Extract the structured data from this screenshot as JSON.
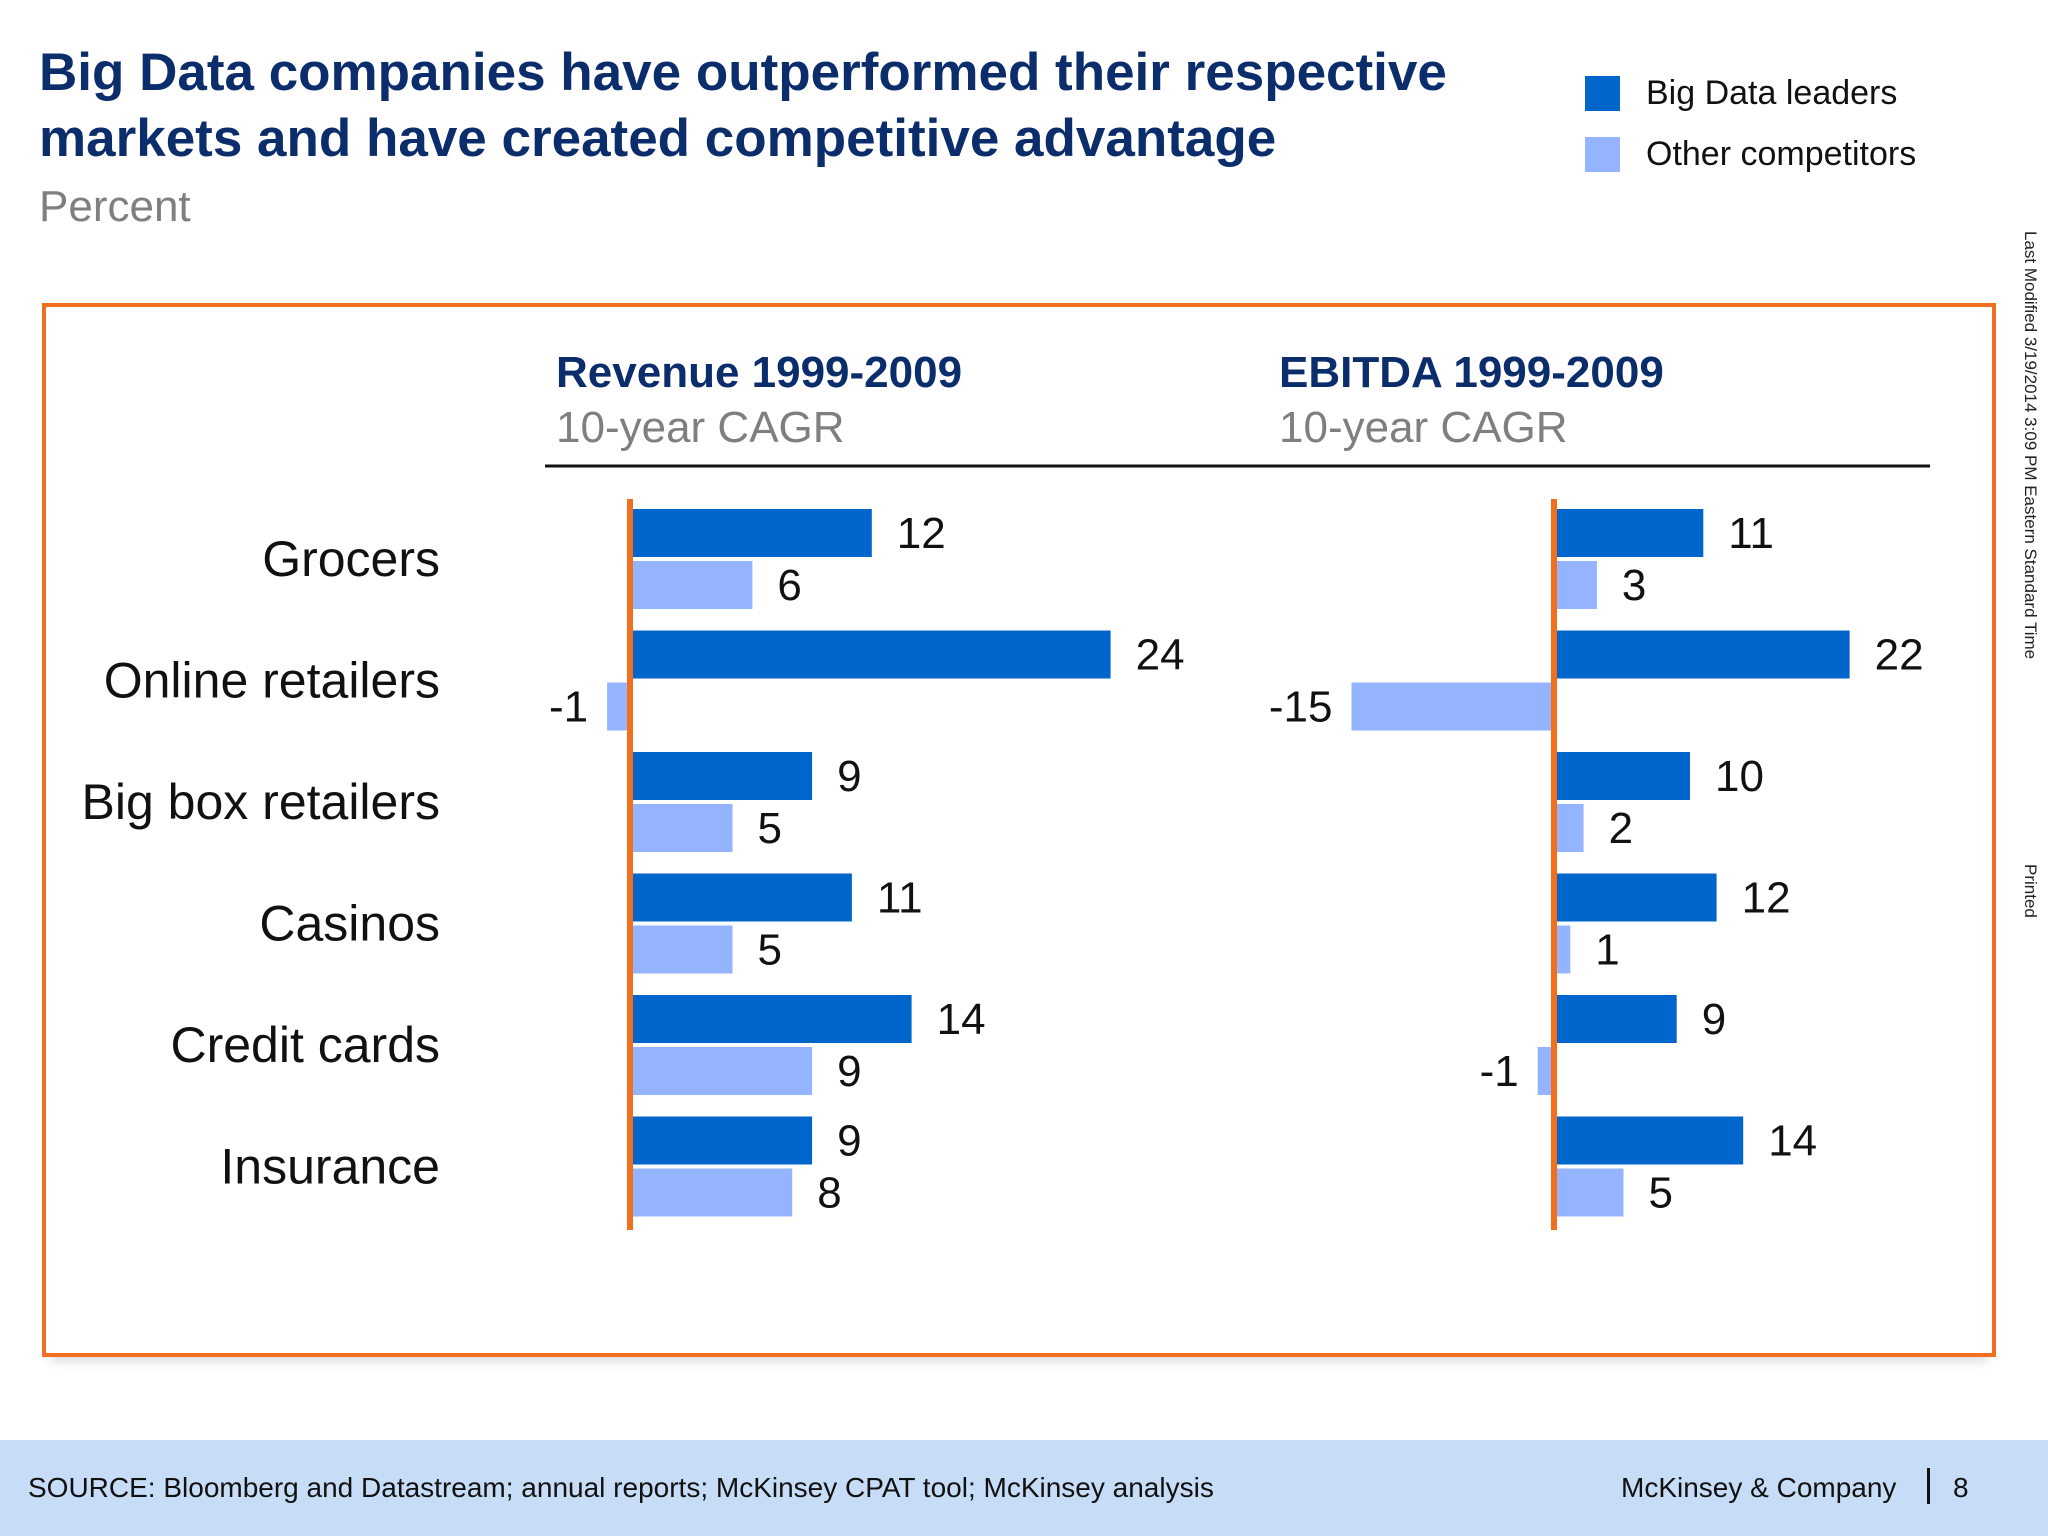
{
  "header": {
    "title": "Big Data companies have outperformed their respective markets and have created competitive advantage",
    "subtitle": "Percent"
  },
  "legend": [
    {
      "label": "Big Data leaders",
      "color": "#0066CC"
    },
    {
      "label": "Other competitors",
      "color": "#94B4FF"
    }
  ],
  "colors": {
    "frame": "#F07020",
    "axis": "#F07020",
    "title": "#0B2D6B"
  },
  "chart_data": [
    {
      "type": "bar",
      "orientation": "horizontal",
      "title": "Revenue 1999-2009",
      "subtitle": "10-year CAGR",
      "categories": [
        "Grocers",
        "Online retailers",
        "Big box retailers",
        "Casinos",
        "Credit cards",
        "Insurance"
      ],
      "series": [
        {
          "name": "Big Data leaders",
          "values": [
            12,
            24,
            9,
            11,
            14,
            9
          ]
        },
        {
          "name": "Other competitors",
          "values": [
            6,
            -1,
            5,
            5,
            9,
            8
          ]
        }
      ],
      "grid": false,
      "legend": "top-right"
    },
    {
      "type": "bar",
      "orientation": "horizontal",
      "title": "EBITDA 1999-2009",
      "subtitle": "10-year CAGR",
      "categories": [
        "Grocers",
        "Online retailers",
        "Big box retailers",
        "Casinos",
        "Credit cards",
        "Insurance"
      ],
      "series": [
        {
          "name": "Big Data leaders",
          "values": [
            11,
            22,
            10,
            12,
            9,
            14
          ]
        },
        {
          "name": "Other competitors",
          "values": [
            3,
            -15,
            2,
            1,
            -1,
            5
          ]
        }
      ],
      "grid": false,
      "legend": "top-right"
    }
  ],
  "side_notes": {
    "modified": "Last Modified 3/19/2014 3:09 PM Eastern Standard Time",
    "printed": "Printed"
  },
  "footer": {
    "source": "SOURCE: Bloomberg and Datastream; annual reports; McKinsey CPAT tool; McKinsey analysis",
    "brand": "McKinsey & Company",
    "page": "8"
  }
}
